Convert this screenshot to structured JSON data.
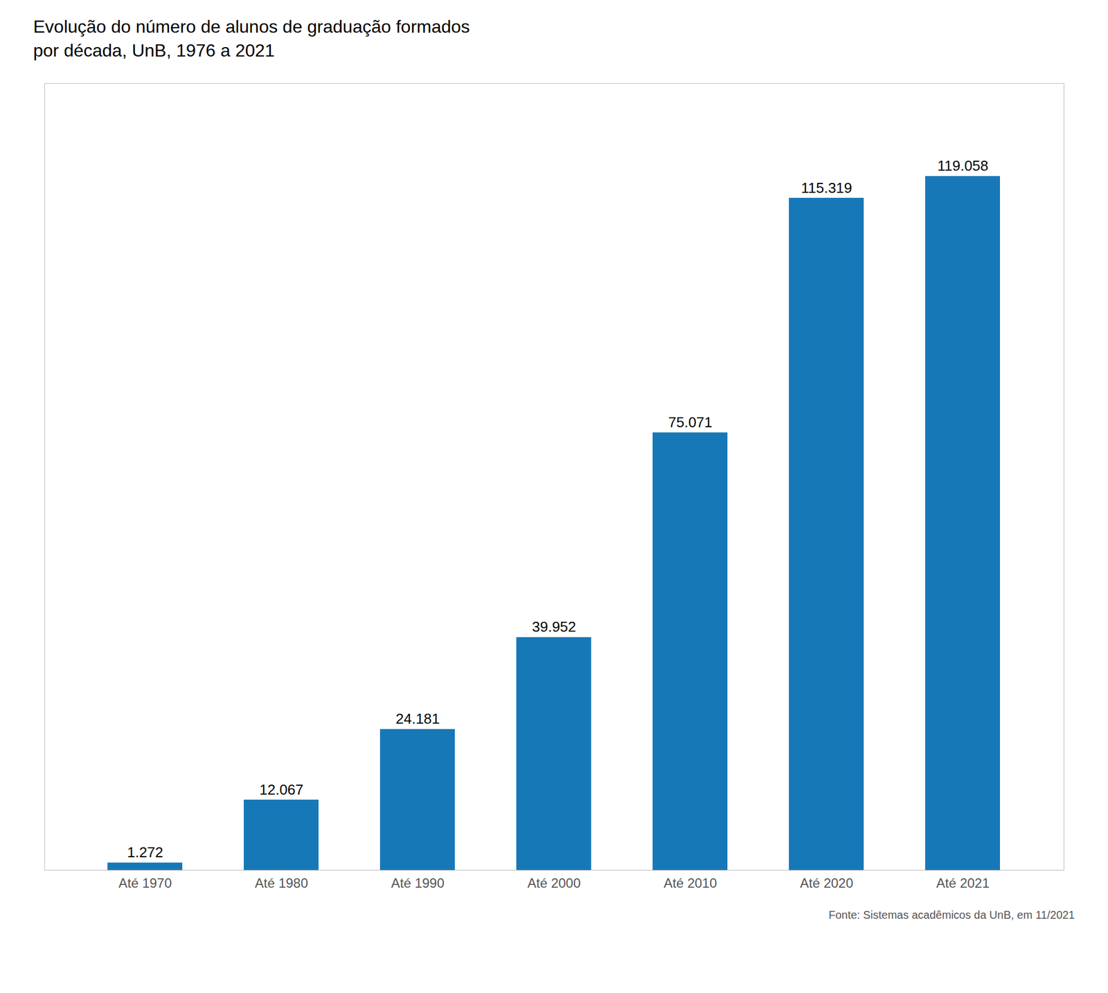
{
  "chart_data": {
    "type": "bar",
    "title": "Evolução do número de alunos de graduação formados",
    "subtitle": "por década, UnB, 1976 a 2021",
    "categories": [
      "Até 1970",
      "Até 1980",
      "Até 1990",
      "Até 2000",
      "Até 2010",
      "Até 2020",
      "Até 2021"
    ],
    "values": [
      1272,
      12067,
      24181,
      39952,
      75071,
      115319,
      119058
    ],
    "value_labels": [
      "1.272",
      "12.067",
      "24.181",
      "39.952",
      "75.071",
      "115.319",
      "119.058"
    ],
    "data_labels": true,
    "color": "#1778b7",
    "ylim": [
      0,
      135000
    ],
    "grid": false,
    "tick_labels": "x",
    "annotations": [
      "Fonte: Sistemas acadêmicos da UnB, em 11/2021"
    ]
  }
}
